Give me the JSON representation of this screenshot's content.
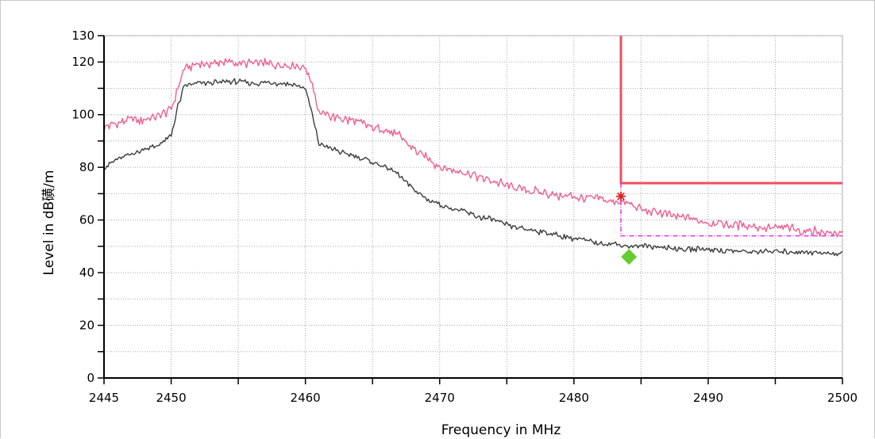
{
  "chart_data": {
    "type": "line",
    "xlabel": "Frequency in MHz",
    "ylabel": "Level in dB磺/m",
    "xlim": [
      2445,
      2500
    ],
    "ylim": [
      0,
      130
    ],
    "x_ticks": [
      "2445",
      "2450",
      "2460",
      "2470",
      "2480",
      "2490",
      "2500"
    ],
    "y_ticks": [
      "0",
      "20",
      "40",
      "60",
      "80",
      "100",
      "120",
      "130"
    ],
    "grid": true,
    "series": [
      {
        "color": "#ee5f8f",
        "x": [
          2445,
          2446,
          2447,
          2448,
          2449,
          2450,
          2450.5,
          2451,
          2452,
          2453,
          2454,
          2455,
          2456,
          2457,
          2458,
          2459,
          2460,
          2460.5,
          2461,
          2462,
          2463,
          2464,
          2465,
          2466,
          2467,
          2468,
          2469,
          2470,
          2471,
          2472,
          2473,
          2474,
          2475,
          2476,
          2477,
          2478,
          2479,
          2480,
          2481,
          2482,
          2483,
          2484,
          2485,
          2486,
          2487,
          2488,
          2489,
          2490,
          2491,
          2492,
          2493,
          2494,
          2495,
          2496,
          2497,
          2498,
          2499,
          2500
        ],
        "values": [
          95,
          97,
          98,
          98,
          99,
          102,
          110,
          118,
          119,
          119.5,
          120,
          119.5,
          119.5,
          119.5,
          119,
          119,
          118,
          112,
          101,
          99,
          98,
          97,
          95,
          94,
          92,
          87,
          84,
          80,
          79,
          78,
          76,
          75,
          73,
          72,
          71,
          70,
          69,
          69,
          68,
          68,
          67,
          66,
          64,
          63,
          62,
          61,
          60,
          59,
          59,
          58,
          58,
          57,
          57,
          57,
          56,
          56,
          55,
          55
        ]
      },
      {
        "color": "#3c3c3c",
        "x": [
          2445,
          2446,
          2447,
          2448,
          2449,
          2450,
          2450.5,
          2451,
          2452,
          2453,
          2454,
          2455,
          2456,
          2457,
          2458,
          2459,
          2460,
          2460.5,
          2461,
          2462,
          2463,
          2464,
          2465,
          2466,
          2467,
          2468,
          2469,
          2470,
          2471,
          2472,
          2473,
          2474,
          2475,
          2476,
          2477,
          2478,
          2479,
          2480,
          2481,
          2482,
          2483,
          2484,
          2485,
          2486,
          2487,
          2488,
          2489,
          2490,
          2491,
          2492,
          2493,
          2494,
          2495,
          2496,
          2497,
          2498,
          2499,
          2500
        ],
        "values": [
          80,
          83,
          85,
          87,
          88,
          92,
          103,
          111,
          112,
          112,
          112.5,
          112.5,
          112,
          112,
          112,
          111.5,
          110,
          100,
          89,
          87,
          85,
          84,
          82,
          80,
          77,
          72,
          68,
          66,
          64,
          63,
          61,
          60,
          58,
          57,
          56,
          55,
          54,
          53,
          52,
          51,
          51,
          50,
          50,
          50,
          49.5,
          49,
          49,
          49,
          48.5,
          48,
          48,
          48,
          48,
          48,
          48,
          47.5,
          47.5,
          47
        ]
      }
    ],
    "limit_lines": [
      {
        "color": "#ee4f5f",
        "style": "solid",
        "points": [
          [
            2483.5,
            130
          ],
          [
            2483.5,
            74
          ],
          [
            2500,
            74
          ]
        ]
      },
      {
        "color": "#dd33ee",
        "style": "dashdot",
        "points": [
          [
            2483.5,
            74
          ],
          [
            2483.5,
            54
          ],
          [
            2500,
            54
          ]
        ]
      }
    ],
    "markers": [
      {
        "shape": "star",
        "color": "#e02020",
        "x": 2483.5,
        "y": 69
      },
      {
        "shape": "diamond",
        "color": "#66cc33",
        "x": 2484.1,
        "y": 46
      }
    ]
  }
}
